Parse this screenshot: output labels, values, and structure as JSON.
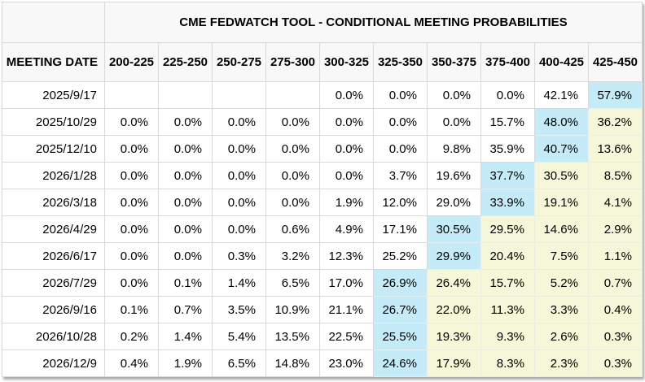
{
  "colors": {
    "header_bg": "#f8f8f8",
    "border": "#d9d9d9",
    "max_highlight_blue": "#c5ebf8",
    "tail_highlight_beige": "#f6f6d9",
    "text": "#000000"
  },
  "chart_data": {
    "type": "table",
    "title": "CME FEDWATCH TOOL - CONDITIONAL MEETING PROBABILITIES",
    "date_column_header": "MEETING DATE",
    "rate_columns": [
      "200-225",
      "225-250",
      "250-275",
      "275-300",
      "300-325",
      "325-350",
      "350-375",
      "375-400",
      "400-425",
      "425-450"
    ],
    "cell_style_codes": {
      "max": "blue highlight",
      "tail": "beige highlight",
      "": "plain white"
    },
    "rows": [
      {
        "date": "2025/9/17",
        "values": [
          "",
          "",
          "",
          "",
          "0.0%",
          "0.0%",
          "0.0%",
          "0.0%",
          "42.1%",
          "57.9%"
        ],
        "styles": [
          "",
          "",
          "",
          "",
          "",
          "",
          "",
          "",
          "",
          "max"
        ]
      },
      {
        "date": "2025/10/29",
        "values": [
          "0.0%",
          "0.0%",
          "0.0%",
          "0.0%",
          "0.0%",
          "0.0%",
          "0.0%",
          "15.7%",
          "48.0%",
          "36.2%"
        ],
        "styles": [
          "",
          "",
          "",
          "",
          "",
          "",
          "",
          "",
          "max",
          "tail"
        ]
      },
      {
        "date": "2025/12/10",
        "values": [
          "0.0%",
          "0.0%",
          "0.0%",
          "0.0%",
          "0.0%",
          "0.0%",
          "9.8%",
          "35.9%",
          "40.7%",
          "13.6%"
        ],
        "styles": [
          "",
          "",
          "",
          "",
          "",
          "",
          "",
          "",
          "max",
          "tail"
        ]
      },
      {
        "date": "2026/1/28",
        "values": [
          "0.0%",
          "0.0%",
          "0.0%",
          "0.0%",
          "0.0%",
          "3.7%",
          "19.6%",
          "37.7%",
          "30.5%",
          "8.5%"
        ],
        "styles": [
          "",
          "",
          "",
          "",
          "",
          "",
          "",
          "max",
          "tail",
          "tail"
        ]
      },
      {
        "date": "2026/3/18",
        "values": [
          "0.0%",
          "0.0%",
          "0.0%",
          "0.0%",
          "1.9%",
          "12.0%",
          "29.0%",
          "33.9%",
          "19.1%",
          "4.1%"
        ],
        "styles": [
          "",
          "",
          "",
          "",
          "",
          "",
          "",
          "max",
          "tail",
          "tail"
        ]
      },
      {
        "date": "2026/4/29",
        "values": [
          "0.0%",
          "0.0%",
          "0.0%",
          "0.6%",
          "4.9%",
          "17.1%",
          "30.5%",
          "29.5%",
          "14.6%",
          "2.9%"
        ],
        "styles": [
          "",
          "",
          "",
          "",
          "",
          "",
          "max",
          "tail",
          "tail",
          "tail"
        ]
      },
      {
        "date": "2026/6/17",
        "values": [
          "0.0%",
          "0.0%",
          "0.3%",
          "3.2%",
          "12.3%",
          "25.2%",
          "29.9%",
          "20.4%",
          "7.5%",
          "1.1%"
        ],
        "styles": [
          "",
          "",
          "",
          "",
          "",
          "",
          "max",
          "tail",
          "tail",
          "tail"
        ]
      },
      {
        "date": "2026/7/29",
        "values": [
          "0.0%",
          "0.1%",
          "1.4%",
          "6.5%",
          "17.0%",
          "26.9%",
          "26.4%",
          "15.7%",
          "5.2%",
          "0.7%"
        ],
        "styles": [
          "",
          "",
          "",
          "",
          "",
          "max",
          "tail",
          "tail",
          "tail",
          "tail"
        ]
      },
      {
        "date": "2026/9/16",
        "values": [
          "0.1%",
          "0.7%",
          "3.5%",
          "10.9%",
          "21.1%",
          "26.7%",
          "22.0%",
          "11.3%",
          "3.3%",
          "0.4%"
        ],
        "styles": [
          "",
          "",
          "",
          "",
          "",
          "max",
          "tail",
          "tail",
          "tail",
          "tail"
        ]
      },
      {
        "date": "2026/10/28",
        "values": [
          "0.2%",
          "1.4%",
          "5.4%",
          "13.5%",
          "22.5%",
          "25.5%",
          "19.3%",
          "9.3%",
          "2.6%",
          "0.3%"
        ],
        "styles": [
          "",
          "",
          "",
          "",
          "",
          "max",
          "tail",
          "tail",
          "tail",
          "tail"
        ]
      },
      {
        "date": "2026/12/9",
        "values": [
          "0.4%",
          "1.9%",
          "6.5%",
          "14.8%",
          "23.0%",
          "24.6%",
          "17.9%",
          "8.3%",
          "2.3%",
          "0.3%"
        ],
        "styles": [
          "",
          "",
          "",
          "",
          "",
          "max",
          "tail",
          "tail",
          "tail",
          "tail"
        ]
      }
    ]
  }
}
